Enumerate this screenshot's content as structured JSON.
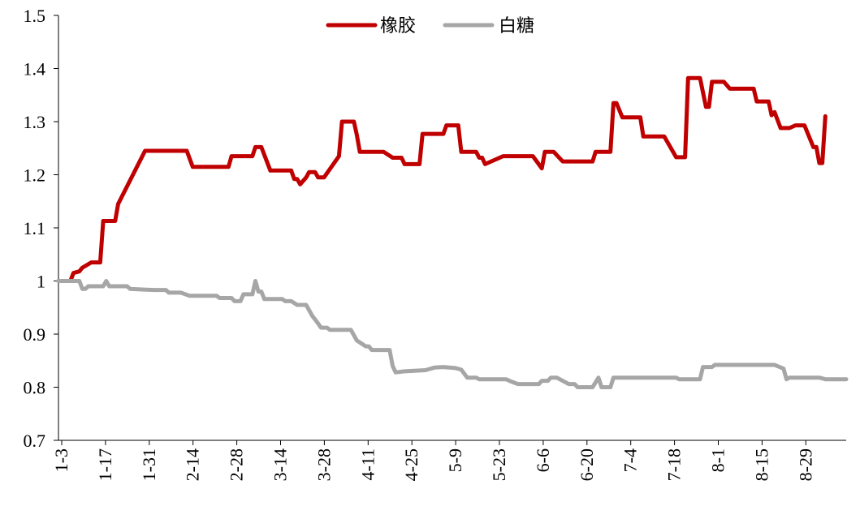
{
  "chart_data": {
    "type": "line",
    "title": "",
    "xlabel": "",
    "ylabel": "",
    "ylim": [
      0.7,
      1.5
    ],
    "yticks": [
      "1.5",
      "1.4",
      "1.3",
      "1.2",
      "1.1",
      "1",
      "0.9",
      "0.8",
      "0.7"
    ],
    "xticks": [
      "1-3",
      "1-17",
      "1-31",
      "2-14",
      "2-28",
      "3-14",
      "3-28",
      "4-11",
      "4-25",
      "5-9",
      "5-23",
      "6-6",
      "6-20",
      "7-4",
      "7-18",
      "8-1",
      "8-15",
      "8-29"
    ],
    "grid": false,
    "legend_position": "top-center",
    "series": [
      {
        "name": "橡胶",
        "color": "#c00000",
        "points": [
          [
            1,
            1.0
          ],
          [
            5,
            1.0
          ],
          [
            6,
            1.015
          ],
          [
            8,
            1.018
          ],
          [
            9,
            1.025
          ],
          [
            12,
            1.035
          ],
          [
            15,
            1.035
          ],
          [
            16,
            1.113
          ],
          [
            20,
            1.113
          ],
          [
            21,
            1.145
          ],
          [
            30,
            1.245
          ],
          [
            44,
            1.245
          ],
          [
            46,
            1.215
          ],
          [
            58,
            1.215
          ],
          [
            59,
            1.235
          ],
          [
            66,
            1.235
          ],
          [
            67,
            1.252
          ],
          [
            69,
            1.252
          ],
          [
            72,
            1.208
          ],
          [
            79,
            1.208
          ],
          [
            80,
            1.192
          ],
          [
            81,
            1.192
          ],
          [
            82,
            1.182
          ],
          [
            84,
            1.195
          ],
          [
            85,
            1.205
          ],
          [
            87,
            1.205
          ],
          [
            88,
            1.195
          ],
          [
            90,
            1.195
          ],
          [
            95,
            1.235
          ],
          [
            96,
            1.3
          ],
          [
            100,
            1.3
          ],
          [
            101,
            1.275
          ],
          [
            102,
            1.243
          ],
          [
            110,
            1.243
          ],
          [
            113,
            1.232
          ],
          [
            116,
            1.232
          ],
          [
            117,
            1.22
          ],
          [
            122,
            1.22
          ],
          [
            123,
            1.277
          ],
          [
            130,
            1.277
          ],
          [
            131,
            1.293
          ],
          [
            135,
            1.293
          ],
          [
            136,
            1.243
          ],
          [
            141,
            1.243
          ],
          [
            142,
            1.232
          ],
          [
            143,
            1.232
          ],
          [
            144,
            1.22
          ],
          [
            150,
            1.235
          ],
          [
            160,
            1.235
          ],
          [
            163,
            1.212
          ],
          [
            164,
            1.243
          ],
          [
            167,
            1.243
          ],
          [
            170,
            1.225
          ],
          [
            180,
            1.225
          ],
          [
            181,
            1.243
          ],
          [
            186,
            1.243
          ],
          [
            187,
            1.335
          ],
          [
            188,
            1.335
          ],
          [
            190,
            1.308
          ],
          [
            196,
            1.308
          ],
          [
            197,
            1.272
          ],
          [
            204,
            1.272
          ],
          [
            208,
            1.233
          ],
          [
            211,
            1.233
          ],
          [
            212,
            1.382
          ],
          [
            216,
            1.382
          ],
          [
            218,
            1.328
          ],
          [
            219,
            1.328
          ],
          [
            220,
            1.375
          ],
          [
            224,
            1.375
          ],
          [
            226,
            1.362
          ],
          [
            234,
            1.362
          ],
          [
            235,
            1.338
          ],
          [
            239,
            1.338
          ],
          [
            240,
            1.312
          ],
          [
            241,
            1.318
          ],
          [
            243,
            1.288
          ],
          [
            246,
            1.288
          ],
          [
            248,
            1.293
          ],
          [
            251,
            1.293
          ],
          [
            254,
            1.252
          ],
          [
            255,
            1.252
          ],
          [
            256,
            1.222
          ],
          [
            257,
            1.222
          ],
          [
            258,
            1.31
          ]
        ]
      },
      {
        "name": "白糖",
        "color": "#a6a6a6",
        "points": [
          [
            1,
            1.0
          ],
          [
            8,
            1.0
          ],
          [
            9,
            0.985
          ],
          [
            10,
            0.985
          ],
          [
            11,
            0.99
          ],
          [
            16,
            0.99
          ],
          [
            17,
            1.0
          ],
          [
            18,
            0.99
          ],
          [
            24,
            0.99
          ],
          [
            25,
            0.985
          ],
          [
            29,
            0.984
          ],
          [
            33,
            0.983
          ],
          [
            37,
            0.983
          ],
          [
            38,
            0.978
          ],
          [
            42,
            0.978
          ],
          [
            45,
            0.972
          ],
          [
            54,
            0.972
          ],
          [
            55,
            0.968
          ],
          [
            59,
            0.968
          ],
          [
            60,
            0.962
          ],
          [
            62,
            0.962
          ],
          [
            63,
            0.975
          ],
          [
            66,
            0.975
          ],
          [
            67,
            1.0
          ],
          [
            68,
            0.98
          ],
          [
            69,
            0.98
          ],
          [
            70,
            0.966
          ],
          [
            76,
            0.966
          ],
          [
            77,
            0.962
          ],
          [
            79,
            0.962
          ],
          [
            81,
            0.955
          ],
          [
            84,
            0.955
          ],
          [
            86,
            0.935
          ],
          [
            88,
            0.92
          ],
          [
            89,
            0.912
          ],
          [
            91,
            0.912
          ],
          [
            92,
            0.908
          ],
          [
            99,
            0.908
          ],
          [
            101,
            0.888
          ],
          [
            104,
            0.877
          ],
          [
            105,
            0.877
          ],
          [
            106,
            0.87
          ],
          [
            112,
            0.87
          ],
          [
            113,
            0.84
          ],
          [
            114,
            0.828
          ],
          [
            117,
            0.83
          ],
          [
            124,
            0.832
          ],
          [
            127,
            0.837
          ],
          [
            130,
            0.838
          ],
          [
            134,
            0.836
          ],
          [
            136,
            0.833
          ],
          [
            138,
            0.818
          ],
          [
            141,
            0.818
          ],
          [
            142,
            0.815
          ],
          [
            151,
            0.815
          ],
          [
            153,
            0.81
          ],
          [
            155,
            0.806
          ],
          [
            162,
            0.806
          ],
          [
            163,
            0.812
          ],
          [
            165,
            0.812
          ],
          [
            166,
            0.818
          ],
          [
            168,
            0.818
          ],
          [
            172,
            0.806
          ],
          [
            174,
            0.806
          ],
          [
            175,
            0.8
          ],
          [
            180,
            0.8
          ],
          [
            182,
            0.818
          ],
          [
            183,
            0.8
          ],
          [
            186,
            0.8
          ],
          [
            187,
            0.818
          ],
          [
            208,
            0.818
          ],
          [
            209,
            0.815
          ],
          [
            216,
            0.815
          ],
          [
            217,
            0.838
          ],
          [
            220,
            0.838
          ],
          [
            221,
            0.842
          ],
          [
            241,
            0.842
          ],
          [
            244,
            0.835
          ],
          [
            245,
            0.815
          ],
          [
            246,
            0.818
          ],
          [
            256,
            0.818
          ],
          [
            258,
            0.815
          ],
          [
            265,
            0.815
          ]
        ]
      }
    ]
  }
}
